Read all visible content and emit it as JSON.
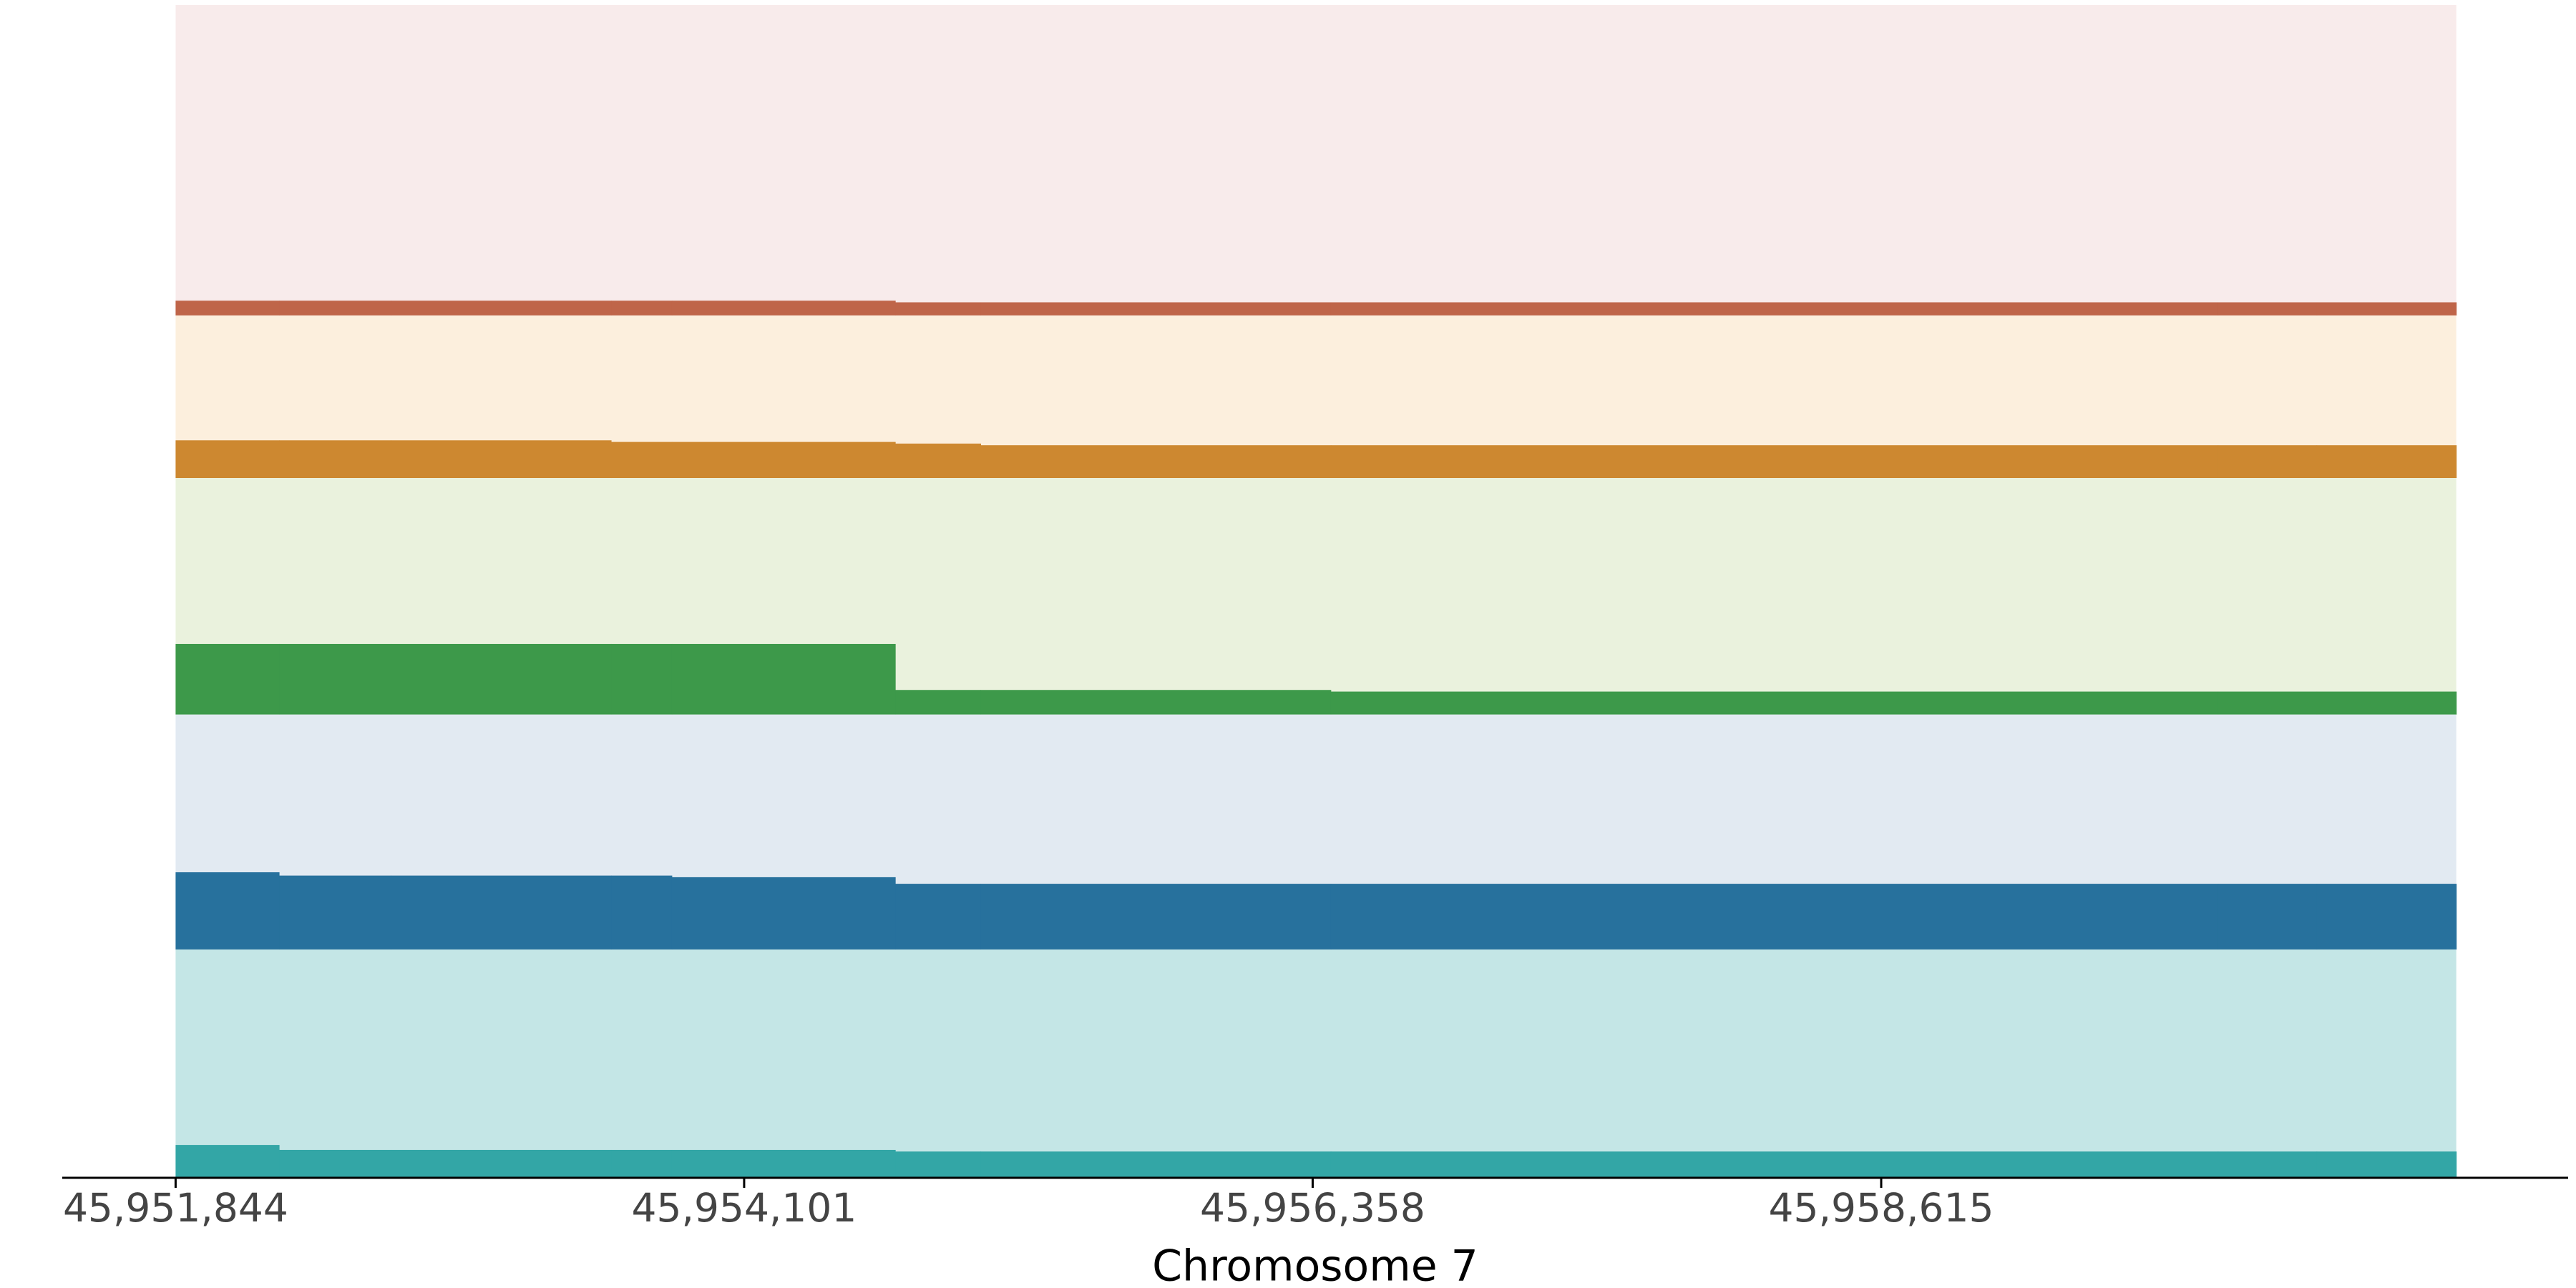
{
  "chart_data": {
    "type": "step-tracks",
    "xlabel": "Chromosome 7",
    "xlim": [
      45951394,
      45961342
    ],
    "xticks": [
      {
        "value": 45951844,
        "label": "45,951,844"
      },
      {
        "value": 45954101,
        "label": "45,954,101"
      },
      {
        "value": 45956358,
        "label": "45,956,358"
      },
      {
        "value": 45958615,
        "label": "45,958,615"
      }
    ],
    "bins": [
      45951844,
      45952255,
      45952699,
      45953573,
      45953814,
      45954701,
      45955040,
      45956430,
      45959952,
      45960344,
      45960898
    ],
    "tracks": [
      {
        "color": "#bf6549",
        "background": "#f8ebeb",
        "ylim": [
          0,
          189
        ],
        "values": [
          9,
          9,
          9,
          9,
          9,
          8,
          8,
          8,
          8,
          8
        ]
      },
      {
        "color": "#cd8830",
        "background": "#fcefdd",
        "ylim": [
          0,
          99
        ],
        "values": [
          23,
          23,
          23,
          22,
          22,
          21,
          20,
          20,
          20,
          20
        ]
      },
      {
        "color": "#3d994a",
        "background": "#eaf2dd",
        "ylim": [
          0,
          144
        ],
        "values": [
          43,
          43,
          43,
          43,
          43,
          15,
          15,
          14,
          14,
          14
        ]
      },
      {
        "color": "#27719d",
        "background": "#e2eaf2",
        "ylim": [
          0,
          143
        ],
        "values": [
          47,
          45,
          45,
          45,
          44,
          40,
          40,
          40,
          40,
          40
        ]
      },
      {
        "color": "#33a6a6",
        "background": "#c4e6e6",
        "ylim": [
          0,
          139
        ],
        "values": [
          20,
          17,
          17,
          17,
          17,
          16,
          16,
          16,
          16,
          16
        ]
      }
    ]
  }
}
